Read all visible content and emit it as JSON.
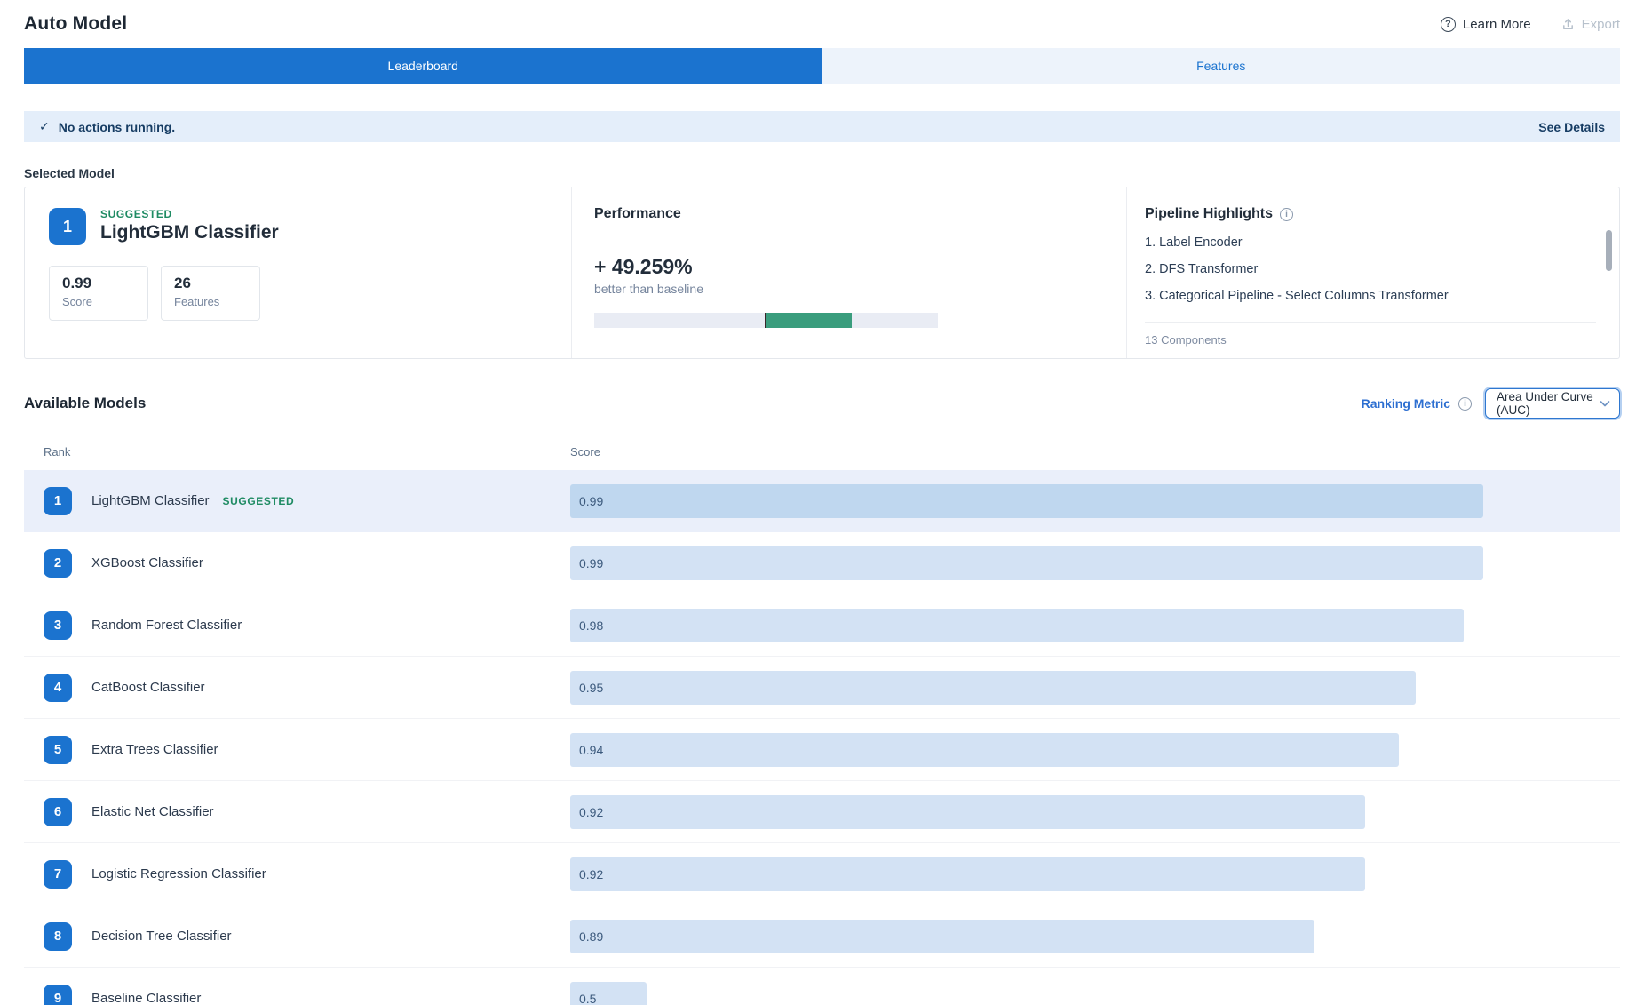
{
  "header": {
    "title": "Auto Model",
    "learn_more_label": "Learn More",
    "export_label": "Export"
  },
  "tabs": [
    {
      "label": "Leaderboard",
      "active": true
    },
    {
      "label": "Features",
      "active": false
    }
  ],
  "alert": {
    "message": "No actions running.",
    "action": "See Details"
  },
  "selected_model": {
    "section_label": "Selected Model",
    "rank": "1",
    "suggested_label": "SUGGESTED",
    "name": "LightGBM Classifier",
    "stats": [
      {
        "value": "0.99",
        "label": "Score"
      },
      {
        "value": "26",
        "label": "Features"
      }
    ],
    "performance": {
      "title": "Performance",
      "delta": "+ 49.259%",
      "subtitle": "better than baseline",
      "baseline_pct": 49.6,
      "fill_pct": 25.3
    },
    "pipeline": {
      "title": "Pipeline Highlights",
      "items": [
        "1. Label Encoder",
        "2. DFS Transformer",
        "3. Categorical Pipeline - Select Columns Transformer"
      ],
      "footer": "13 Components"
    }
  },
  "available_models": {
    "title": "Available Models",
    "ranking_metric_label": "Ranking Metric",
    "metric_value": "Area Under Curve (AUC)",
    "columns": {
      "rank": "Rank",
      "score": "Score"
    },
    "suggested_label": "SUGGESTED",
    "rows": [
      {
        "rank": "1",
        "name": "LightGBM Classifier",
        "suggested": true,
        "score": "0.99",
        "bar_pct": 87.0,
        "selected": true
      },
      {
        "rank": "2",
        "name": "XGBoost Classifier",
        "suggested": false,
        "score": "0.99",
        "bar_pct": 87.0,
        "selected": false
      },
      {
        "rank": "3",
        "name": "Random Forest Classifier",
        "suggested": false,
        "score": "0.98",
        "bar_pct": 85.1,
        "selected": false
      },
      {
        "rank": "4",
        "name": "CatBoost Classifier",
        "suggested": false,
        "score": "0.95",
        "bar_pct": 80.5,
        "selected": false
      },
      {
        "rank": "5",
        "name": "Extra Trees Classifier",
        "suggested": false,
        "score": "0.94",
        "bar_pct": 78.9,
        "selected": false
      },
      {
        "rank": "6",
        "name": "Elastic Net Classifier",
        "suggested": false,
        "score": "0.92",
        "bar_pct": 75.7,
        "selected": false
      },
      {
        "rank": "7",
        "name": "Logistic Regression Classifier",
        "suggested": false,
        "score": "0.92",
        "bar_pct": 75.7,
        "selected": false
      },
      {
        "rank": "8",
        "name": "Decision Tree Classifier",
        "suggested": false,
        "score": "0.89",
        "bar_pct": 70.9,
        "selected": false
      },
      {
        "rank": "9",
        "name": "Baseline Classifier",
        "suggested": false,
        "score": "0.5",
        "bar_pct": 7.3,
        "selected": false
      }
    ]
  },
  "colors": {
    "accent": "#1b73cf",
    "tab_bg": "#edf3fb",
    "alert_bg": "#e4eefa",
    "navy": "#173d64",
    "suggested": "#1f8b63",
    "perf_green": "#3a9d7d",
    "bar_blue": "#d3e2f4",
    "bar_blue_sel": "#bfd7ef",
    "row_sel_bg": "#eaeffa"
  }
}
